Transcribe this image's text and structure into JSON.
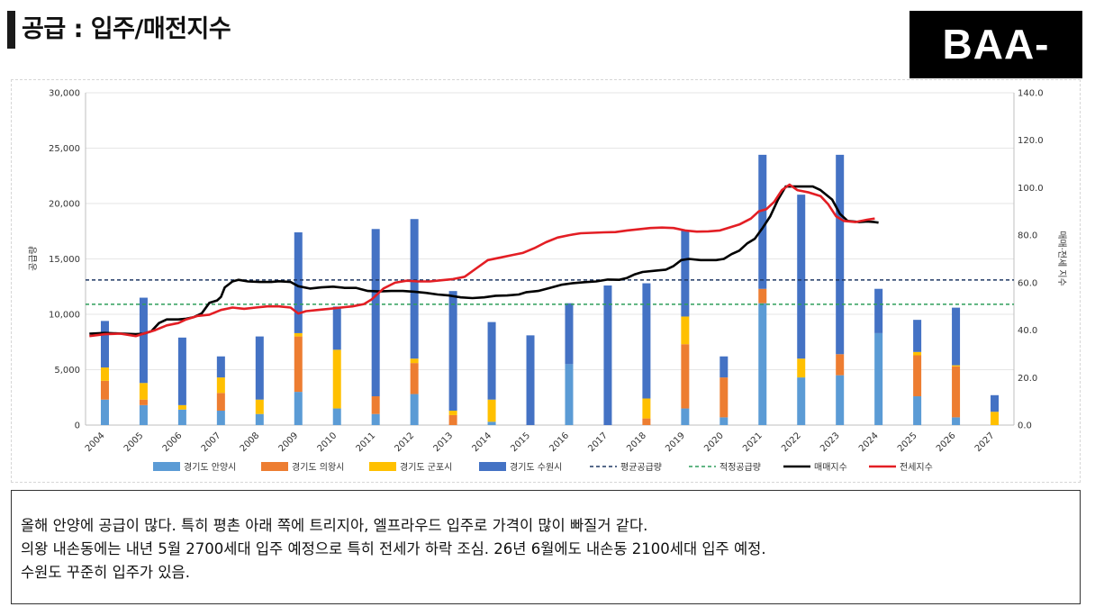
{
  "header": {
    "title": "공급 : 입주/매전지수",
    "logo_text": "BAA-"
  },
  "colors": {
    "anyang": "#5b9bd5",
    "uiwang": "#ed7d31",
    "gunpo": "#ffc000",
    "suwon": "#4472c4",
    "avg_line": "#1f3864",
    "proper_line": "#2e9e5b",
    "sale_index": "#000000",
    "jeonse_index": "#e31e24"
  },
  "chart_data": {
    "type": "bar",
    "stacked": true,
    "title": "",
    "xlabel": "",
    "ylabel": "공급량",
    "y2label": "매매·전세 지수",
    "ylim": [
      0,
      30000
    ],
    "y2lim": [
      0,
      140
    ],
    "y_ticks": [
      "0",
      "5,000",
      "10,000",
      "15,000",
      "20,000",
      "25,000",
      "30,000"
    ],
    "y2_ticks": [
      "0.0",
      "20.0",
      "40.0",
      "60.0",
      "80.0",
      "100.0",
      "120.0",
      "140.0"
    ],
    "grid": true,
    "legend_position": "bottom",
    "categories": [
      "2004",
      "2005",
      "2006",
      "2007",
      "2008",
      "2009",
      "2010",
      "2011",
      "2012",
      "2013",
      "2014",
      "2015",
      "2016",
      "2017",
      "2018",
      "2019",
      "2020",
      "2021",
      "2022",
      "2023",
      "2024",
      "2025",
      "2026",
      "2027"
    ],
    "series": [
      {
        "name": "경기도 안양시",
        "values": [
          2300,
          1800,
          1400,
          1300,
          1000,
          3000,
          1500,
          1000,
          2800,
          0,
          300,
          0,
          5500,
          0,
          0,
          1500,
          700,
          11000,
          4300,
          4500,
          8300,
          2600,
          700,
          0
        ]
      },
      {
        "name": "경기도 의왕시",
        "values": [
          1700,
          500,
          0,
          1600,
          0,
          5000,
          0,
          1600,
          2800,
          900,
          0,
          0,
          0,
          0,
          600,
          5800,
          3600,
          1300,
          0,
          1900,
          0,
          3700,
          4600,
          0
        ]
      },
      {
        "name": "경기도 군포시",
        "values": [
          1200,
          1500,
          400,
          1400,
          1300,
          300,
          5300,
          0,
          400,
          400,
          2000,
          0,
          0,
          0,
          1800,
          2500,
          0,
          0,
          1700,
          0,
          0,
          300,
          100,
          1200
        ]
      },
      {
        "name": "경기도 수원시",
        "values": [
          4200,
          7700,
          6100,
          1900,
          5700,
          9100,
          3900,
          15100,
          12600,
          10800,
          7000,
          8100,
          5500,
          12600,
          10400,
          7800,
          1900,
          12100,
          14800,
          18000,
          4000,
          2900,
          5200,
          1500
        ]
      }
    ],
    "reference_lines": [
      {
        "name": "평균공급량",
        "value": 13100,
        "style": "dashed"
      },
      {
        "name": "적정공급량",
        "value": 10900,
        "style": "dashed"
      }
    ],
    "index_series": [
      {
        "name": "매매지수",
        "axis": "right",
        "points": [
          [
            2003.6,
            38.5
          ],
          [
            2004.0,
            38.8
          ],
          [
            2004.5,
            38.5
          ],
          [
            2004.8,
            38.3
          ],
          [
            2005.0,
            38.5
          ],
          [
            2005.2,
            39.5
          ],
          [
            2005.4,
            43
          ],
          [
            2005.6,
            44.5
          ],
          [
            2005.9,
            44.5
          ],
          [
            2006.1,
            44.8
          ],
          [
            2006.3,
            45.5
          ],
          [
            2006.5,
            47
          ],
          [
            2006.7,
            51.5
          ],
          [
            2006.9,
            52.5
          ],
          [
            2007.0,
            54
          ],
          [
            2007.1,
            58
          ],
          [
            2007.3,
            60.5
          ],
          [
            2007.45,
            61.2
          ],
          [
            2007.7,
            60.5
          ],
          [
            2008.0,
            60.3
          ],
          [
            2008.3,
            60.3
          ],
          [
            2008.5,
            60.6
          ],
          [
            2008.8,
            60.3
          ],
          [
            2009.0,
            58.5
          ],
          [
            2009.3,
            57.5
          ],
          [
            2009.6,
            58
          ],
          [
            2009.9,
            58.3
          ],
          [
            2010.2,
            57.8
          ],
          [
            2010.5,
            57.8
          ],
          [
            2010.8,
            56.5
          ],
          [
            2011.1,
            56.3
          ],
          [
            2011.4,
            56.5
          ],
          [
            2011.7,
            56.5
          ],
          [
            2012.0,
            56.2
          ],
          [
            2012.3,
            55.7
          ],
          [
            2012.6,
            55
          ],
          [
            2012.9,
            54.6
          ],
          [
            2013.2,
            53.8
          ],
          [
            2013.5,
            53.5
          ],
          [
            2013.8,
            53.8
          ],
          [
            2014.1,
            54.5
          ],
          [
            2014.4,
            54.6
          ],
          [
            2014.7,
            55
          ],
          [
            2014.9,
            56
          ],
          [
            2015.2,
            56.5
          ],
          [
            2015.5,
            57.8
          ],
          [
            2015.8,
            59.1
          ],
          [
            2016.1,
            59.8
          ],
          [
            2016.4,
            60.2
          ],
          [
            2016.7,
            60.5
          ],
          [
            2017.0,
            61.3
          ],
          [
            2017.3,
            61.2
          ],
          [
            2017.5,
            62
          ],
          [
            2017.7,
            63.5
          ],
          [
            2017.9,
            64.5
          ],
          [
            2018.2,
            65
          ],
          [
            2018.5,
            65.5
          ],
          [
            2018.7,
            67
          ],
          [
            2018.9,
            69.5
          ],
          [
            2019.1,
            70
          ],
          [
            2019.4,
            69.5
          ],
          [
            2019.8,
            69.5
          ],
          [
            2020.0,
            70
          ],
          [
            2020.2,
            72
          ],
          [
            2020.4,
            73.5
          ],
          [
            2020.6,
            76.5
          ],
          [
            2020.8,
            78.5
          ],
          [
            2021.0,
            83
          ],
          [
            2021.2,
            88
          ],
          [
            2021.4,
            95
          ],
          [
            2021.6,
            100.5
          ],
          [
            2021.8,
            100.5
          ],
          [
            2022.0,
            100.5
          ],
          [
            2022.3,
            100.5
          ],
          [
            2022.5,
            99
          ],
          [
            2022.8,
            95
          ],
          [
            2023.0,
            89
          ],
          [
            2023.2,
            86
          ],
          [
            2023.5,
            85.5
          ],
          [
            2023.7,
            85.8
          ],
          [
            2023.9,
            85.5
          ],
          [
            2024.0,
            85.3
          ]
        ]
      },
      {
        "name": "전세지수",
        "axis": "right",
        "points": [
          [
            2003.6,
            37.5
          ],
          [
            2004.0,
            38.3
          ],
          [
            2004.4,
            38.5
          ],
          [
            2004.8,
            37.5
          ],
          [
            2005.0,
            38.5
          ],
          [
            2005.3,
            40
          ],
          [
            2005.6,
            42
          ],
          [
            2005.9,
            43
          ],
          [
            2006.1,
            44.5
          ],
          [
            2006.4,
            46
          ],
          [
            2006.7,
            46.5
          ],
          [
            2007.0,
            48.5
          ],
          [
            2007.3,
            49.5
          ],
          [
            2007.6,
            49
          ],
          [
            2007.9,
            49.5
          ],
          [
            2008.2,
            50
          ],
          [
            2008.5,
            50
          ],
          [
            2008.8,
            49.5
          ],
          [
            2009.0,
            47
          ],
          [
            2009.2,
            48
          ],
          [
            2009.5,
            48.5
          ],
          [
            2009.8,
            49
          ],
          [
            2010.1,
            49.5
          ],
          [
            2010.4,
            50
          ],
          [
            2010.7,
            51
          ],
          [
            2010.9,
            53
          ],
          [
            2011.2,
            57.5
          ],
          [
            2011.5,
            60
          ],
          [
            2011.8,
            60.8
          ],
          [
            2012.1,
            60.5
          ],
          [
            2012.4,
            60.5
          ],
          [
            2012.7,
            61
          ],
          [
            2013.0,
            61.5
          ],
          [
            2013.3,
            62.5
          ],
          [
            2013.6,
            66
          ],
          [
            2013.9,
            69.5
          ],
          [
            2014.2,
            70.5
          ],
          [
            2014.5,
            71.5
          ],
          [
            2014.8,
            72.5
          ],
          [
            2015.1,
            74.5
          ],
          [
            2015.4,
            77
          ],
          [
            2015.7,
            79
          ],
          [
            2016.0,
            80
          ],
          [
            2016.3,
            80.8
          ],
          [
            2016.6,
            81
          ],
          [
            2016.9,
            81.2
          ],
          [
            2017.2,
            81.3
          ],
          [
            2017.5,
            82
          ],
          [
            2017.8,
            82.5
          ],
          [
            2018.1,
            83
          ],
          [
            2018.4,
            83.2
          ],
          [
            2018.7,
            83
          ],
          [
            2019.0,
            82
          ],
          [
            2019.3,
            81.5
          ],
          [
            2019.6,
            81.6
          ],
          [
            2019.9,
            82
          ],
          [
            2020.1,
            83
          ],
          [
            2020.4,
            84.5
          ],
          [
            2020.7,
            87
          ],
          [
            2020.9,
            90
          ],
          [
            2021.1,
            91
          ],
          [
            2021.3,
            94
          ],
          [
            2021.5,
            99
          ],
          [
            2021.7,
            101.3
          ],
          [
            2021.9,
            99
          ],
          [
            2022.2,
            98
          ],
          [
            2022.5,
            96.5
          ],
          [
            2022.7,
            93
          ],
          [
            2022.9,
            88
          ],
          [
            2023.1,
            86
          ],
          [
            2023.4,
            85.5
          ],
          [
            2023.7,
            86.5
          ],
          [
            2023.9,
            87
          ]
        ]
      }
    ]
  },
  "notes": {
    "lines": [
      "올해 안양에 공급이 많다. 특히 평촌 아래 쪽에 트리지아, 엘프라우드 입주로 가격이 많이 빠질거 같다.",
      "의왕 내손동에는 내년 5월 2700세대 입주 예정으로 특히 전세가 하락 조심. 26년 6월에도 내손동 2100세대 입주 예정.",
      "수원도 꾸준히 입주가 있음."
    ]
  }
}
